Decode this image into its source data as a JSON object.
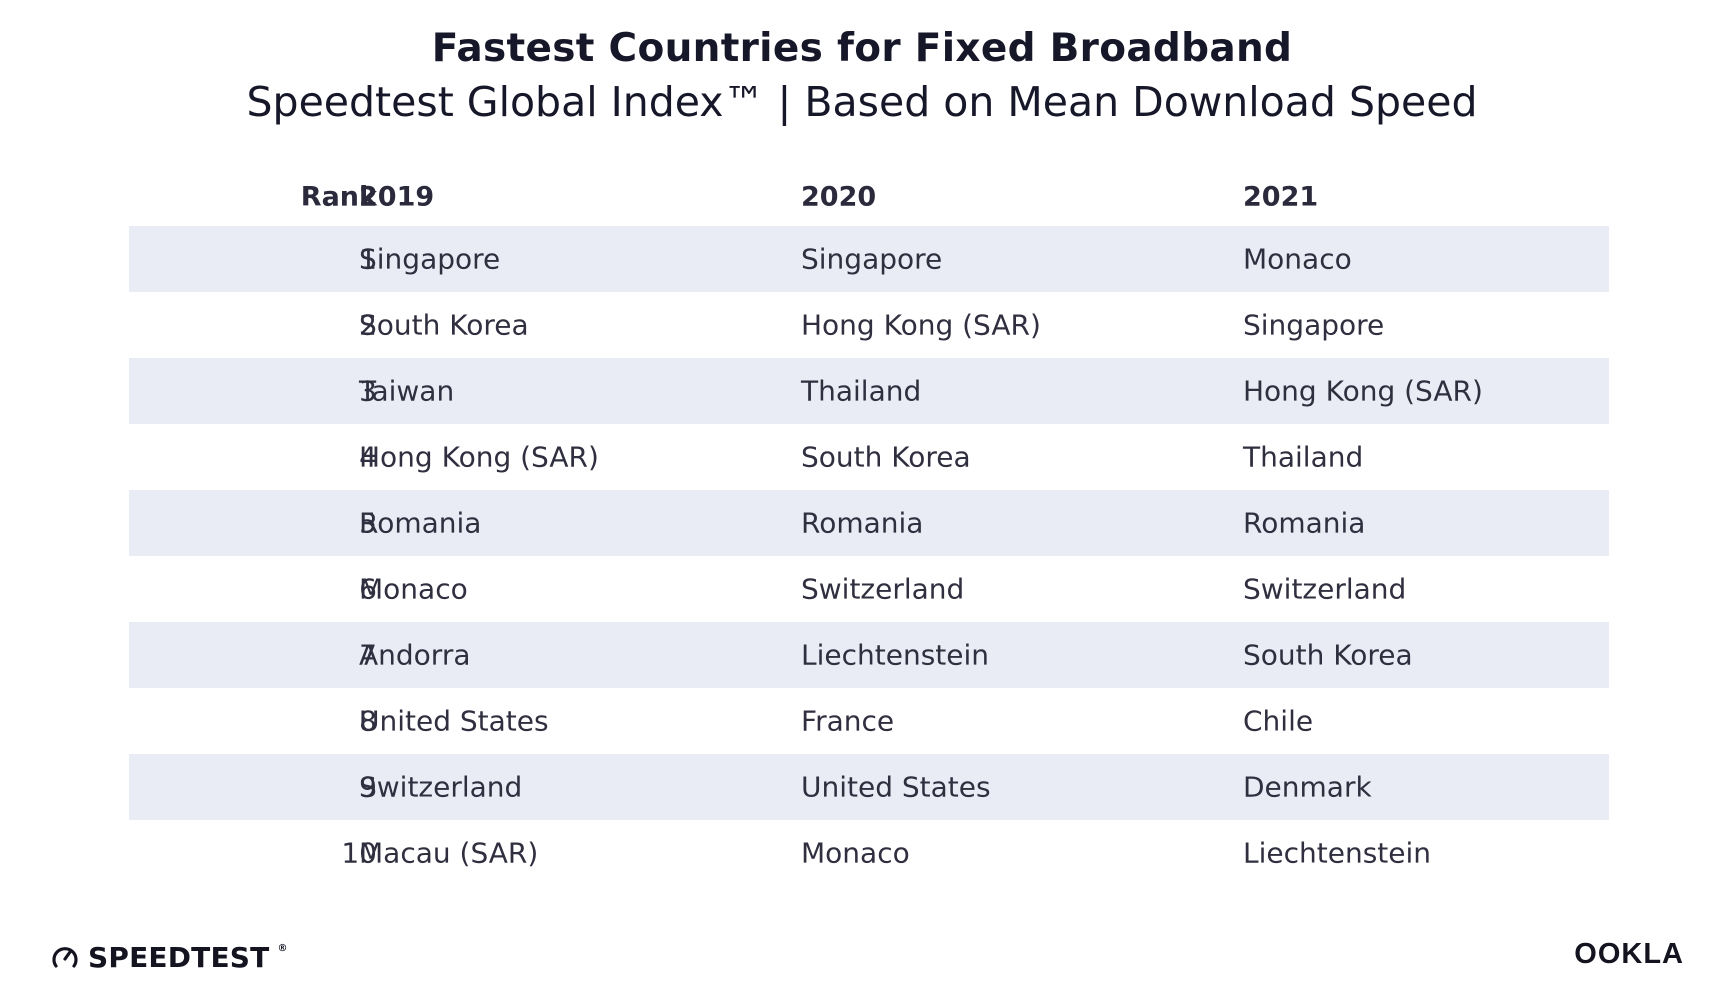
{
  "chart_data": {
    "type": "table",
    "title": "Fastest Countries for Fixed Broadband",
    "subtitle": "Speedtest Global Index™ | Based on Mean Download Speed",
    "columns": [
      "Rank",
      "2019",
      "2020",
      "2021"
    ],
    "rows": [
      [
        "1",
        "Singapore",
        "Singapore",
        "Monaco"
      ],
      [
        "2",
        "South Korea",
        "Hong Kong (SAR)",
        "Singapore"
      ],
      [
        "3",
        "Taiwan",
        "Thailand",
        "Hong Kong (SAR)"
      ],
      [
        "4",
        "Hong Kong (SAR)",
        "South Korea",
        "Thailand"
      ],
      [
        "5",
        "Romania",
        "Romania",
        "Romania"
      ],
      [
        "6",
        "Monaco",
        "Switzerland",
        "Switzerland"
      ],
      [
        "7",
        "Andorra",
        "Liechtenstein",
        "South Korea"
      ],
      [
        "8",
        "United States",
        "France",
        "Chile"
      ],
      [
        "9",
        "Switzerland",
        "United States",
        "Denmark"
      ],
      [
        "10",
        "Macau (SAR)",
        "Monaco",
        "Liechtenstein"
      ]
    ]
  },
  "branding": {
    "left_logo": "SPEEDTEST",
    "left_logo_mark": "®",
    "right_logo": "OOKLA"
  },
  "colors": {
    "shaded_row": "#e9ecf4",
    "text": "#2f2f40"
  }
}
